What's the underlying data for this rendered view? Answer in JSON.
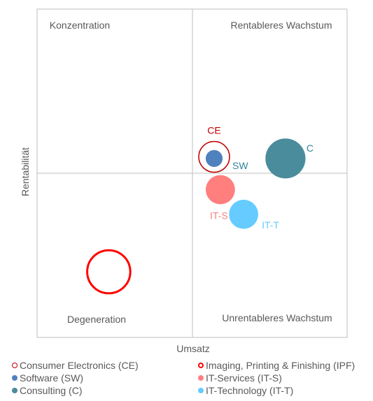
{
  "chart_data": {
    "type": "scatter",
    "subtype": "bubble-portfolio",
    "xlabel": "Umsatz",
    "ylabel": "Rentabilität",
    "grid": false,
    "legend_position": "bottom",
    "quadrants": {
      "top_left": "Konzentration",
      "top_right": "Rentableres Wachstum",
      "bottom_left": "Degeneration",
      "bottom_right": "Unrentableres Wachstum"
    },
    "xlim": [
      -1,
      1
    ],
    "ylim": [
      -1,
      1
    ],
    "series": [
      {
        "key": "CE",
        "name": "Consumer Electronics (CE)",
        "label": "CE",
        "x": 0.14,
        "y": 0.1,
        "size": 1.0,
        "style": "ring",
        "color": "#c00000",
        "label_color": "#c00000"
      },
      {
        "key": "IPF",
        "name": "Imaging, Printing & Finishing (IPF)",
        "label": "",
        "x": -0.54,
        "y": -0.6,
        "size": 1.4,
        "style": "ring-bold",
        "color": "#ff0000",
        "label_color": "#ff0000"
      },
      {
        "key": "SW",
        "name": "Software (SW)",
        "label": "SW",
        "x": 0.14,
        "y": 0.09,
        "size": 0.55,
        "style": "filled",
        "color": "#4f81bd",
        "label_color": "#31859c"
      },
      {
        "key": "IT-S",
        "name": "IT-Services (IT-S)",
        "label": "IT-S",
        "x": 0.18,
        "y": -0.1,
        "size": 0.95,
        "style": "filled",
        "color": "#ff7f7f",
        "label_color": "#ff7f7f"
      },
      {
        "key": "C",
        "name": "Consulting (C)",
        "label": "C",
        "x": 0.6,
        "y": 0.09,
        "size": 1.3,
        "style": "filled",
        "color": "#4a8c9c",
        "label_color": "#31859c"
      },
      {
        "key": "IT-T",
        "name": "IT-Technology (IT-T)",
        "label": "IT-T",
        "x": 0.33,
        "y": -0.25,
        "size": 0.95,
        "style": "filled",
        "color": "#66ccff",
        "label_color": "#66ccff"
      }
    ]
  },
  "legend": [
    {
      "key": "CE",
      "label": "Consumer Electronics (CE)",
      "marker": "ring",
      "color": "#c00000"
    },
    {
      "key": "IPF",
      "label": "Imaging, Printing & Finishing (IPF)",
      "marker": "ring-bold",
      "color": "#ff0000"
    },
    {
      "key": "SW",
      "label": "Software (SW)",
      "marker": "dot",
      "color": "#4f81bd"
    },
    {
      "key": "IT-S",
      "label": "IT-Services (IT-S)",
      "marker": "dot",
      "color": "#ff7f7f"
    },
    {
      "key": "C",
      "label": "Consulting (C)",
      "marker": "dot",
      "color": "#4a8c9c"
    },
    {
      "key": "IT-T",
      "label": "IT-Technology (IT-T)",
      "marker": "dot",
      "color": "#66ccff"
    }
  ]
}
